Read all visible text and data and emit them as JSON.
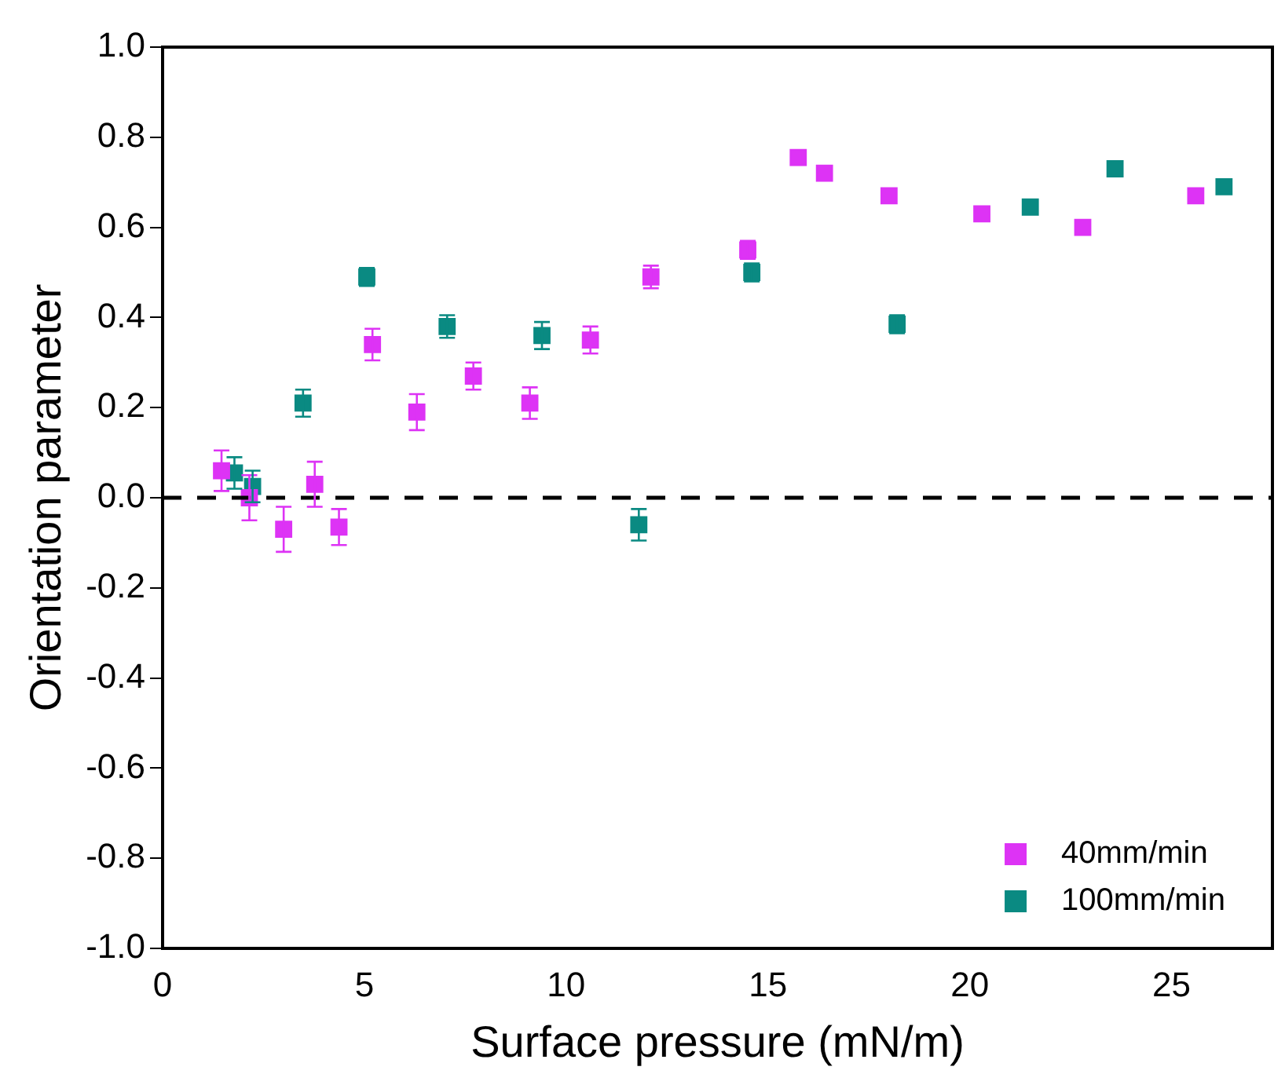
{
  "chart_data": {
    "type": "scatter",
    "xlabel": "Surface pressure (mN/m)",
    "ylabel": "Orientation parameter",
    "xlim": [
      0,
      27.5
    ],
    "xticks": [
      0,
      5,
      10,
      15,
      20,
      25
    ],
    "ylim": [
      -1,
      1
    ],
    "yticks": [
      {
        "value": -1,
        "label": "-1.0"
      },
      {
        "value": -0.8,
        "label": "-0.8"
      },
      {
        "value": -0.6,
        "label": "-0.6"
      },
      {
        "value": -0.4,
        "label": "-0.4"
      },
      {
        "value": -0.2,
        "label": "-0.2"
      },
      {
        "value": 0,
        "label": "0.0"
      },
      {
        "value": 0.2,
        "label": "0.2"
      },
      {
        "value": 0.4,
        "label": "0.4"
      },
      {
        "value": 0.6,
        "label": "0.6"
      },
      {
        "value": 0.8,
        "label": "0.8"
      },
      {
        "value": 1,
        "label": "1.0"
      }
    ],
    "marker": "square",
    "legend": "bottom right",
    "grid": false,
    "ref_lines": [
      {
        "axis": "y",
        "value": 0,
        "color": "#000000",
        "line_style": "dashed"
      }
    ],
    "series": [
      {
        "name": "40mm/min",
        "color": "#dd33f5",
        "x": [
          1.46,
          2.15,
          3.0,
          3.77,
          4.37,
          5.2,
          6.3,
          7.7,
          9.1,
          10.6,
          12.1,
          14.5,
          15.75,
          16.4,
          18.0,
          20.3,
          22.8,
          25.6
        ],
        "values": [
          0.06,
          0.0,
          -0.07,
          0.03,
          -0.065,
          0.34,
          0.19,
          0.27,
          0.21,
          0.35,
          0.49,
          0.55,
          0.755,
          0.72,
          0.67,
          0.63,
          0.6,
          0.67
        ],
        "errors": [
          0.045,
          0.05,
          0.05,
          0.05,
          0.04,
          0.035,
          0.04,
          0.03,
          0.035,
          0.03,
          0.025,
          0.02,
          null,
          null,
          null,
          null,
          null,
          null
        ]
      },
      {
        "name": "100mm/min",
        "color": "#0a8a82",
        "x": [
          1.78,
          2.23,
          3.48,
          5.06,
          7.05,
          9.4,
          11.8,
          14.6,
          18.2,
          21.5,
          23.6,
          26.3
        ],
        "values": [
          0.055,
          0.025,
          0.21,
          0.49,
          0.38,
          0.36,
          -0.06,
          0.5,
          0.385,
          0.645,
          0.73,
          0.69
        ],
        "errors": [
          0.035,
          0.035,
          0.03,
          0.02,
          0.025,
          0.03,
          0.035,
          0.02,
          0.02,
          null,
          null,
          null
        ]
      }
    ]
  }
}
